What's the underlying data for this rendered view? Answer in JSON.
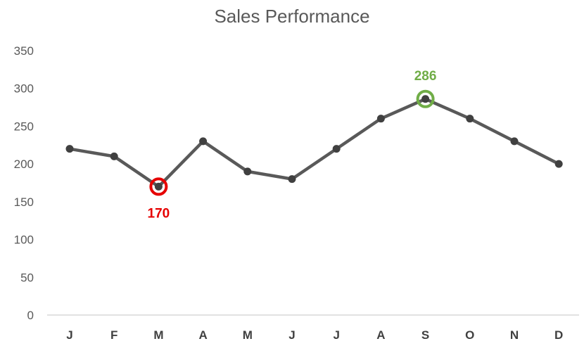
{
  "chart_data": {
    "type": "line",
    "title": "Sales Performance",
    "xlabel": "",
    "ylabel": "",
    "categories": [
      "J",
      "F",
      "M",
      "A",
      "M",
      "J",
      "J",
      "A",
      "S",
      "O",
      "N",
      "D"
    ],
    "series": [
      {
        "values": [
          220,
          210,
          170,
          230,
          190,
          180,
          220,
          260,
          286,
          260,
          230,
          200
        ]
      }
    ],
    "ylim": [
      0,
      350
    ],
    "yticks": [
      0,
      50,
      100,
      150,
      200,
      250,
      300,
      350
    ],
    "grid": false,
    "legend": "none",
    "highlights": [
      {
        "index": 2,
        "label": "170",
        "color": "#e60000",
        "label_position": "below"
      },
      {
        "index": 8,
        "label": "286",
        "color": "#70ad47",
        "label_position": "above"
      }
    ],
    "colors": {
      "line": "#595959",
      "marker": "#404040",
      "axis": "#d9d9d9"
    }
  }
}
